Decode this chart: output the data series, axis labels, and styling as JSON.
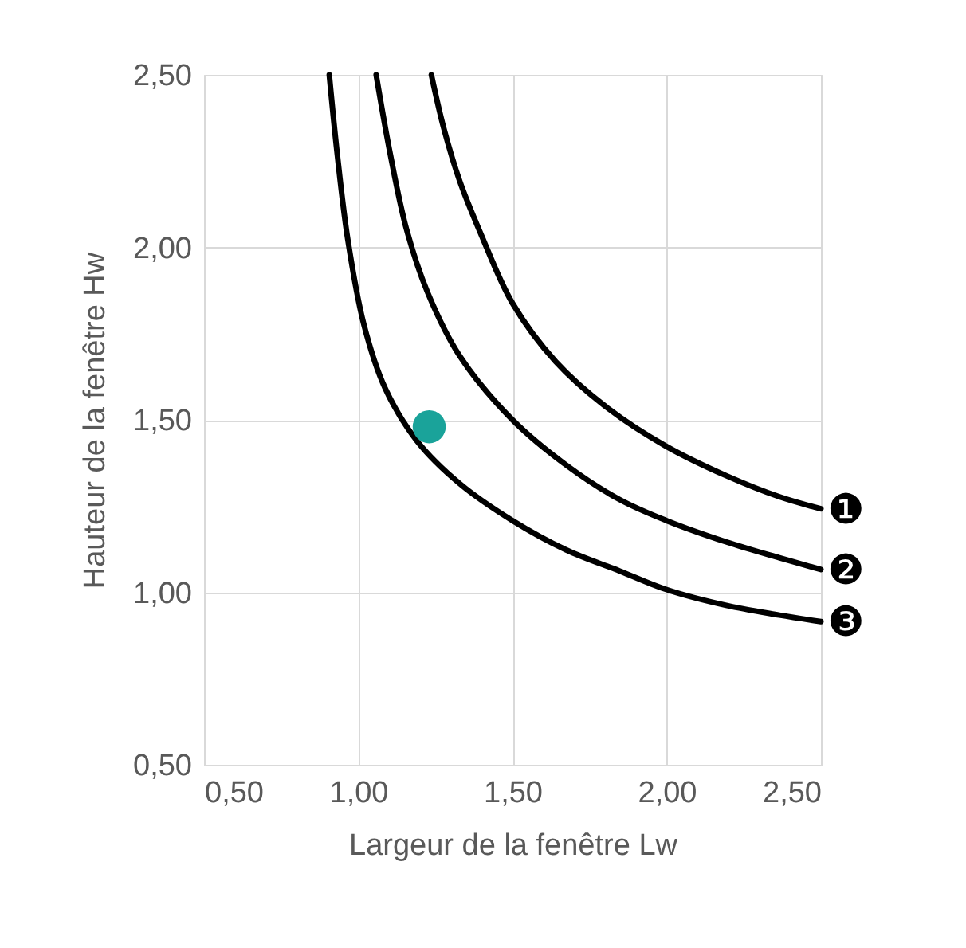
{
  "chart_data": {
    "type": "line",
    "xlabel": "Largeur de la fenêtre Lw",
    "ylabel": "Hauteur de la fenêtre Hw",
    "xlim": [
      0.5,
      2.5
    ],
    "ylim": [
      0.5,
      2.5
    ],
    "xticks": [
      {
        "value": 0.5,
        "label": "0,50"
      },
      {
        "value": 1.0,
        "label": "1,00"
      },
      {
        "value": 1.5,
        "label": "1,50"
      },
      {
        "value": 2.0,
        "label": "2,00"
      },
      {
        "value": 2.5,
        "label": "2,50"
      }
    ],
    "yticks": [
      {
        "value": 0.5,
        "label": "0,50"
      },
      {
        "value": 1.0,
        "label": "1,00"
      },
      {
        "value": 1.5,
        "label": "1,50"
      },
      {
        "value": 2.0,
        "label": "2,00"
      },
      {
        "value": 2.5,
        "label": "2,50"
      }
    ],
    "grid": true,
    "series": [
      {
        "name": "❶",
        "color": "#000000",
        "x": [
          1.237,
          1.277,
          1.329,
          1.398,
          1.5,
          1.64,
          1.813,
          1.999,
          2.193,
          2.365,
          2.5
        ],
        "values": [
          2.5,
          2.346,
          2.192,
          2.038,
          1.838,
          1.669,
          1.531,
          1.423,
          1.338,
          1.277,
          1.242
        ]
      },
      {
        "name": "❷",
        "color": "#000000",
        "x": [
          1.058,
          1.104,
          1.156,
          1.225,
          1.329,
          1.5,
          1.674,
          1.847,
          1.999,
          2.193,
          2.365,
          2.5
        ],
        "values": [
          2.5,
          2.269,
          2.054,
          1.869,
          1.685,
          1.5,
          1.369,
          1.269,
          1.208,
          1.146,
          1.1,
          1.066
        ]
      },
      {
        "name": "❸",
        "color": "#000000",
        "x": [
          0.906,
          0.932,
          0.966,
          1.018,
          1.087,
          1.191,
          1.329,
          1.5,
          1.674,
          1.847,
          1.999,
          2.193,
          2.365,
          2.5
        ],
        "values": [
          2.5,
          2.269,
          2.023,
          1.777,
          1.592,
          1.438,
          1.315,
          1.208,
          1.123,
          1.062,
          1.008,
          0.962,
          0.934,
          0.915
        ]
      },
      {
        "color": "#1aa39a",
        "type": "scatter",
        "marker": "circle",
        "x": [
          1.23
        ],
        "values": [
          1.48
        ]
      }
    ]
  }
}
